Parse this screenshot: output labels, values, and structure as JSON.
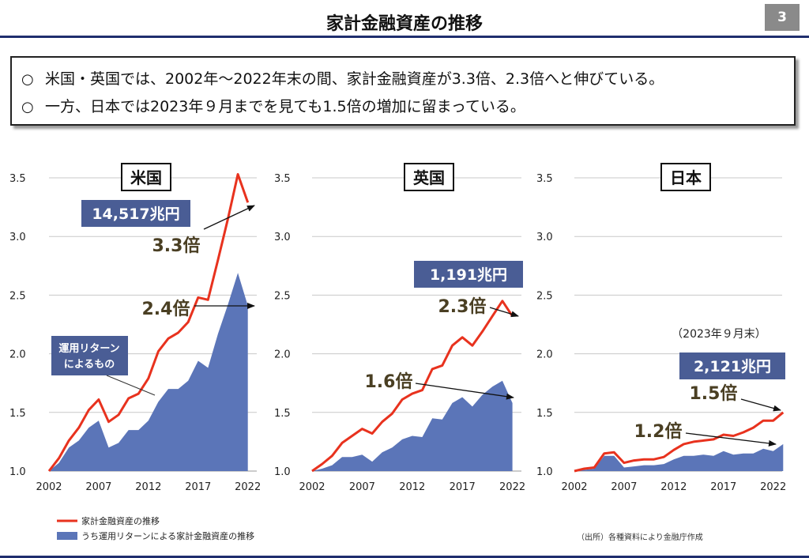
{
  "title": "家計金融資産の推移",
  "page_number": "3",
  "summary": {
    "bullet": "○",
    "line1": "米国・英国では、2002年～2022年末の間、家計金融資産が3.3倍、2.3倍へと伸びている。",
    "line2": "一方、日本では2023年９月までを見ても1.5倍の増加に留まっている。"
  },
  "colors": {
    "total_line": "#e8321e",
    "returns_area": "#5b75b8",
    "callout_box": "#4a5d95",
    "callout_text": "#ffffff",
    "multiplier_text": "#4a3f23",
    "header_rule": "#1f2e6e",
    "gridline": "#c8c8c8"
  },
  "legend": {
    "total": "家計金融資産の推移",
    "returns": "うち運用リターンによる家計金融資産の推移"
  },
  "source": "（出所）各種資料により金融庁作成",
  "chart_data": [
    {
      "type": "area",
      "title": "米国",
      "x": [
        2002,
        2003,
        2004,
        2005,
        2006,
        2007,
        2008,
        2009,
        2010,
        2011,
        2012,
        2013,
        2014,
        2015,
        2016,
        2017,
        2018,
        2019,
        2020,
        2021,
        2022
      ],
      "ylim": [
        1.0,
        3.5
      ],
      "yticks": [
        "1.0",
        "1.5",
        "2.0",
        "2.5",
        "3.0",
        "3.5"
      ],
      "xticks": [
        "2002",
        "2007",
        "2012",
        "2017",
        "2022"
      ],
      "series": [
        {
          "name": "家計金融資産の推移",
          "style": "line",
          "values": [
            1.0,
            1.11,
            1.26,
            1.37,
            1.52,
            1.61,
            1.42,
            1.48,
            1.62,
            1.66,
            1.79,
            2.02,
            2.13,
            2.18,
            2.27,
            2.48,
            2.46,
            2.8,
            3.15,
            3.53,
            3.29
          ]
        },
        {
          "name": "うち運用リターンによる家計金融資産の推移",
          "style": "area",
          "values": [
            1.0,
            1.07,
            1.2,
            1.26,
            1.37,
            1.43,
            1.2,
            1.24,
            1.35,
            1.35,
            1.43,
            1.59,
            1.7,
            1.7,
            1.77,
            1.94,
            1.88,
            2.17,
            2.42,
            2.69,
            2.41
          ]
        }
      ],
      "annotations": {
        "amount": "14,517兆円",
        "total_multiplier": "3.3倍",
        "returns_multiplier": "2.4倍",
        "returns_callout": [
          "運用リターン",
          "によるもの"
        ]
      }
    },
    {
      "type": "area",
      "title": "英国",
      "x": [
        2002,
        2003,
        2004,
        2005,
        2006,
        2007,
        2008,
        2009,
        2010,
        2011,
        2012,
        2013,
        2014,
        2015,
        2016,
        2017,
        2018,
        2019,
        2020,
        2021,
        2022
      ],
      "ylim": [
        1.0,
        3.5
      ],
      "yticks": [
        "1.0",
        "1.5",
        "2.0",
        "2.5",
        "3.0",
        "3.5"
      ],
      "xticks": [
        "2002",
        "2007",
        "2012",
        "2017",
        "2022"
      ],
      "series": [
        {
          "name": "家計金融資産の推移",
          "style": "line",
          "values": [
            1.0,
            1.06,
            1.13,
            1.24,
            1.3,
            1.36,
            1.32,
            1.42,
            1.49,
            1.61,
            1.66,
            1.69,
            1.87,
            1.9,
            2.07,
            2.14,
            2.07,
            2.19,
            2.32,
            2.45,
            2.32
          ]
        },
        {
          "name": "うち運用リターンによる家計金融資産の推移",
          "style": "area",
          "values": [
            1.0,
            1.02,
            1.05,
            1.12,
            1.12,
            1.14,
            1.08,
            1.16,
            1.2,
            1.27,
            1.3,
            1.29,
            1.45,
            1.44,
            1.58,
            1.63,
            1.55,
            1.65,
            1.72,
            1.77,
            1.58
          ]
        }
      ],
      "annotations": {
        "amount": "1,191兆円",
        "total_multiplier": "2.3倍",
        "returns_multiplier": "1.6倍"
      }
    },
    {
      "type": "area",
      "title": "日本",
      "x": [
        2002,
        2003,
        2004,
        2005,
        2006,
        2007,
        2008,
        2009,
        2010,
        2011,
        2012,
        2013,
        2014,
        2015,
        2016,
        2017,
        2018,
        2019,
        2020,
        2021,
        2022,
        2023
      ],
      "ylim": [
        1.0,
        3.5
      ],
      "yticks": [
        "1.0",
        "1.5",
        "2.0",
        "2.5",
        "3.0",
        "3.5"
      ],
      "xticks": [
        "2002",
        "2007",
        "2012",
        "2017",
        "2022"
      ],
      "series": [
        {
          "name": "家計金融資産の推移",
          "style": "line",
          "values": [
            1.0,
            1.02,
            1.03,
            1.15,
            1.16,
            1.07,
            1.09,
            1.1,
            1.1,
            1.12,
            1.18,
            1.23,
            1.25,
            1.26,
            1.27,
            1.31,
            1.3,
            1.33,
            1.37,
            1.43,
            1.43,
            1.5
          ]
        },
        {
          "name": "うち運用リターンによる家計金融資産の推移",
          "style": "area",
          "values": [
            1.0,
            1.01,
            1.02,
            1.13,
            1.13,
            1.03,
            1.04,
            1.05,
            1.05,
            1.06,
            1.1,
            1.13,
            1.13,
            1.14,
            1.13,
            1.17,
            1.14,
            1.15,
            1.15,
            1.19,
            1.17,
            1.23
          ]
        }
      ],
      "annotations": {
        "note": "（2023年９月末）",
        "amount": "2,121兆円",
        "total_multiplier": "1.5倍",
        "returns_multiplier": "1.2倍"
      }
    }
  ]
}
